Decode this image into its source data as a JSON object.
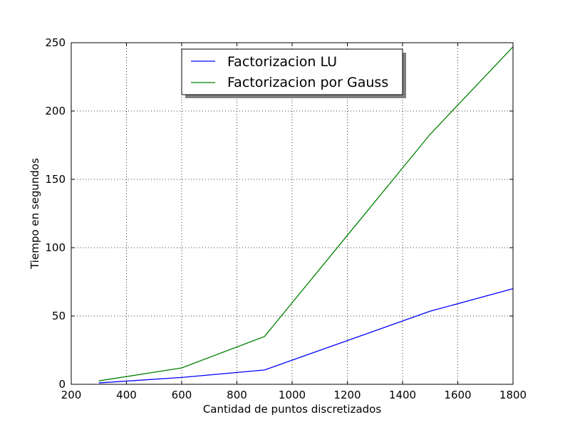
{
  "chart_data": {
    "type": "line",
    "xlabel": "Cantidad de puntos discretizados",
    "ylabel": "Tiempo en segundos",
    "xlim": [
      200,
      1800
    ],
    "ylim": [
      0,
      250
    ],
    "xticks": [
      200,
      400,
      600,
      800,
      1000,
      1200,
      1400,
      1600,
      1800
    ],
    "yticks": [
      0,
      50,
      100,
      150,
      200,
      250
    ],
    "grid": true,
    "legend_position": "upper-center",
    "series": [
      {
        "name": "Factorizacion LU",
        "color": "#0000ff",
        "x": [
          300,
          600,
          900,
          1500,
          1800
        ],
        "y": [
          1,
          5,
          10.5,
          53.5,
          70
        ]
      },
      {
        "name": "Factorizacion por Gauss",
        "color": "#008000",
        "x": [
          300,
          600,
          900,
          1500,
          1800
        ],
        "y": [
          2.5,
          12,
          35,
          183,
          247
        ]
      }
    ]
  }
}
